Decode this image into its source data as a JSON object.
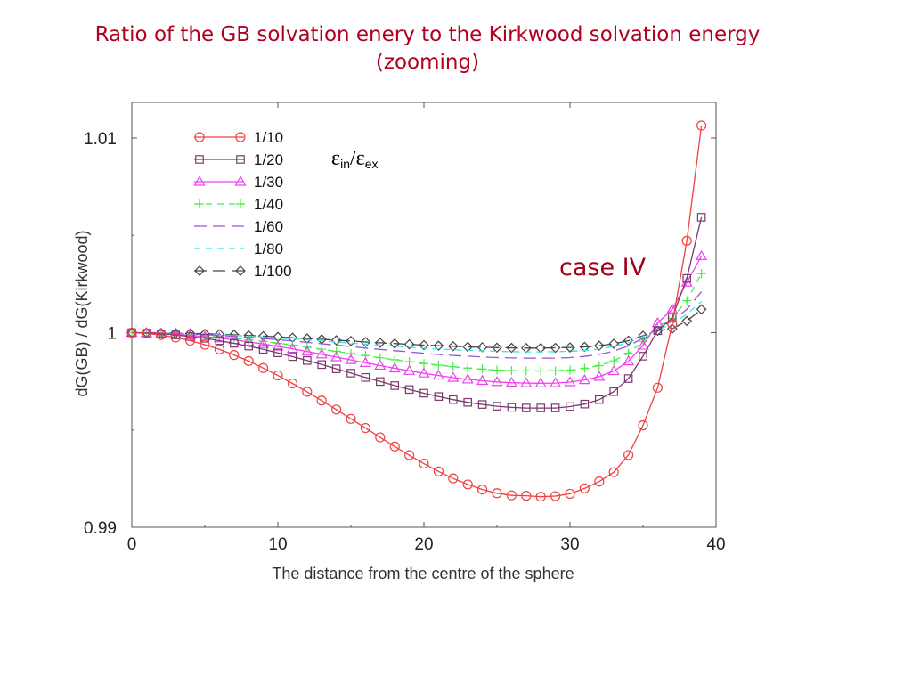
{
  "slide": {
    "title_line1": "Ratio of the GB solvation enery to the Kirkwood solvation energy",
    "title_line2": "(zooming)"
  },
  "chart_data": {
    "type": "line",
    "title": "",
    "xlabel": "The distance from the centre of the sphere",
    "ylabel": "dG(GB) / dG(Kirkwood)",
    "xlim": [
      0,
      40
    ],
    "ylim": [
      0.99,
      1.011
    ],
    "xticks": [
      0,
      10,
      20,
      30,
      40
    ],
    "xtick_labels": [
      "0",
      "10",
      "20",
      "30",
      "40"
    ],
    "yticks": [
      0.99,
      1,
      1.01
    ],
    "ytick_labels": [
      "0.99",
      "1",
      "1.01"
    ],
    "grid": false,
    "legend_position": "top-left",
    "annotations": {
      "epsilon_ratio": {
        "eps": "ε",
        "sub_in": "in",
        "slash": "/",
        "sub_ex": "ex"
      },
      "case": "case IV"
    },
    "x": [
      0,
      1,
      2,
      3,
      4,
      5,
      6,
      7,
      8,
      9,
      10,
      11,
      12,
      13,
      14,
      15,
      16,
      17,
      18,
      19,
      20,
      21,
      22,
      23,
      24,
      25,
      26,
      27,
      28,
      29,
      30,
      31,
      32,
      33,
      34,
      35,
      36,
      37,
      38,
      39
    ],
    "series": [
      {
        "name": "1/10",
        "color": "#f04040",
        "marker": "circle",
        "dash": "solid",
        "values": [
          1.0,
          0.99996,
          0.99988,
          0.99975,
          0.99959,
          0.99938,
          0.99914,
          0.99885,
          0.99854,
          0.99818,
          0.9978,
          0.99739,
          0.99696,
          0.99651,
          0.99605,
          0.99557,
          0.9951,
          0.99462,
          0.99415,
          0.9937,
          0.99327,
          0.99287,
          0.99251,
          0.9922,
          0.99194,
          0.99175,
          0.99164,
          0.99162,
          0.99157,
          0.9916,
          0.99172,
          0.992,
          0.99235,
          0.99283,
          0.99371,
          0.99524,
          0.99717,
          1.00044,
          1.00472,
          1.01064
        ]
      },
      {
        "name": "1/20",
        "color": "#7a3a70",
        "marker": "square",
        "dash": "solid",
        "values": [
          1.0,
          0.99998,
          0.99994,
          0.99988,
          0.9998,
          0.99971,
          0.99959,
          0.99945,
          0.99931,
          0.99914,
          0.99896,
          0.99877,
          0.99857,
          0.99836,
          0.99814,
          0.99792,
          0.9977,
          0.99749,
          0.99728,
          0.99708,
          0.99689,
          0.99672,
          0.99656,
          0.99642,
          0.99631,
          0.99622,
          0.99616,
          0.99613,
          0.99613,
          0.99613,
          0.9962,
          0.99633,
          0.99656,
          0.99697,
          0.99764,
          0.99879,
          1.0001,
          1.00077,
          1.00279,
          1.00593
        ]
      },
      {
        "name": "1/30",
        "color": "#f040f0",
        "marker": "triangle",
        "dash": "solid",
        "values": [
          1.0,
          0.99999,
          0.99996,
          0.99992,
          0.99986,
          0.9998,
          0.99972,
          0.99963,
          0.99953,
          0.99942,
          0.99929,
          0.99917,
          0.99903,
          0.99889,
          0.99874,
          0.9986,
          0.99845,
          0.99831,
          0.99817,
          0.99804,
          0.99791,
          0.9978,
          0.99769,
          0.9976,
          0.99753,
          0.99747,
          0.99743,
          0.99741,
          0.9974,
          0.99741,
          0.99746,
          0.99757,
          0.99774,
          0.99803,
          0.99853,
          0.99934,
          1.0005,
          1.0012,
          1.00258,
          1.00394
        ]
      },
      {
        "name": "1/40",
        "color": "#40f040",
        "marker": "plus",
        "dash": "dashed",
        "values": [
          1.0,
          0.99999,
          0.99997,
          0.99994,
          0.9999,
          0.99984,
          0.99978,
          0.99972,
          0.99964,
          0.99955,
          0.99946,
          0.99936,
          0.99926,
          0.99915,
          0.99904,
          0.99893,
          0.99882,
          0.99871,
          0.99861,
          0.99851,
          0.99841,
          0.99833,
          0.99825,
          0.99818,
          0.99813,
          0.99808,
          0.99805,
          0.99804,
          0.99803,
          0.99804,
          0.99808,
          0.99817,
          0.99831,
          0.99855,
          0.99894,
          0.99955,
          1.0003,
          1.00075,
          1.00165,
          1.00303
        ]
      },
      {
        "name": "1/60",
        "color": "#9a50e0",
        "marker": "none",
        "dash": "longdash",
        "values": [
          1.0,
          0.99999,
          0.99998,
          0.99996,
          0.99993,
          0.9999,
          0.99986,
          0.99981,
          0.99976,
          0.9997,
          0.99964,
          0.99957,
          0.9995,
          0.99943,
          0.99936,
          0.99929,
          0.99921,
          0.99914,
          0.99907,
          0.99901,
          0.99894,
          0.99888,
          0.99883,
          0.99879,
          0.99875,
          0.99872,
          0.9987,
          0.99869,
          0.99869,
          0.99869,
          0.99872,
          0.99878,
          0.99888,
          0.99905,
          0.99932,
          0.99972,
          1.0002,
          1.0006,
          1.0012,
          1.0021
        ]
      },
      {
        "name": "1/80",
        "color": "#30e8e8",
        "marker": "none",
        "dash": "dashed",
        "values": [
          1.0,
          1.0,
          0.99999,
          0.99997,
          0.99995,
          0.99993,
          0.9999,
          0.99986,
          0.99982,
          0.99978,
          0.99973,
          0.99968,
          0.99963,
          0.99957,
          0.99952,
          0.99946,
          0.99941,
          0.99935,
          0.9993,
          0.99925,
          0.9992,
          0.99916,
          0.99912,
          0.99909,
          0.99906,
          0.99904,
          0.99902,
          0.99901,
          0.99901,
          0.99902,
          0.99904,
          0.99908,
          0.99916,
          0.99929,
          0.99949,
          0.9998,
          1.00015,
          1.00045,
          1.00095,
          1.0016
        ]
      },
      {
        "name": "1/100",
        "color": "#444444",
        "marker": "diamond",
        "dash": "longdash",
        "values": [
          1.0,
          1.0,
          0.99999,
          0.99998,
          0.99996,
          0.99994,
          0.99992,
          0.99989,
          0.99986,
          0.99982,
          0.99978,
          0.99974,
          0.9997,
          0.99966,
          0.99961,
          0.99957,
          0.99952,
          0.99948,
          0.99944,
          0.9994,
          0.99936,
          0.99933,
          0.9993,
          0.99927,
          0.99925,
          0.99923,
          0.99922,
          0.99921,
          0.99921,
          0.99922,
          0.99924,
          0.99927,
          0.99933,
          0.99943,
          0.99959,
          0.99984,
          1.0001,
          1.0002,
          1.0006,
          1.0012
        ]
      }
    ]
  }
}
